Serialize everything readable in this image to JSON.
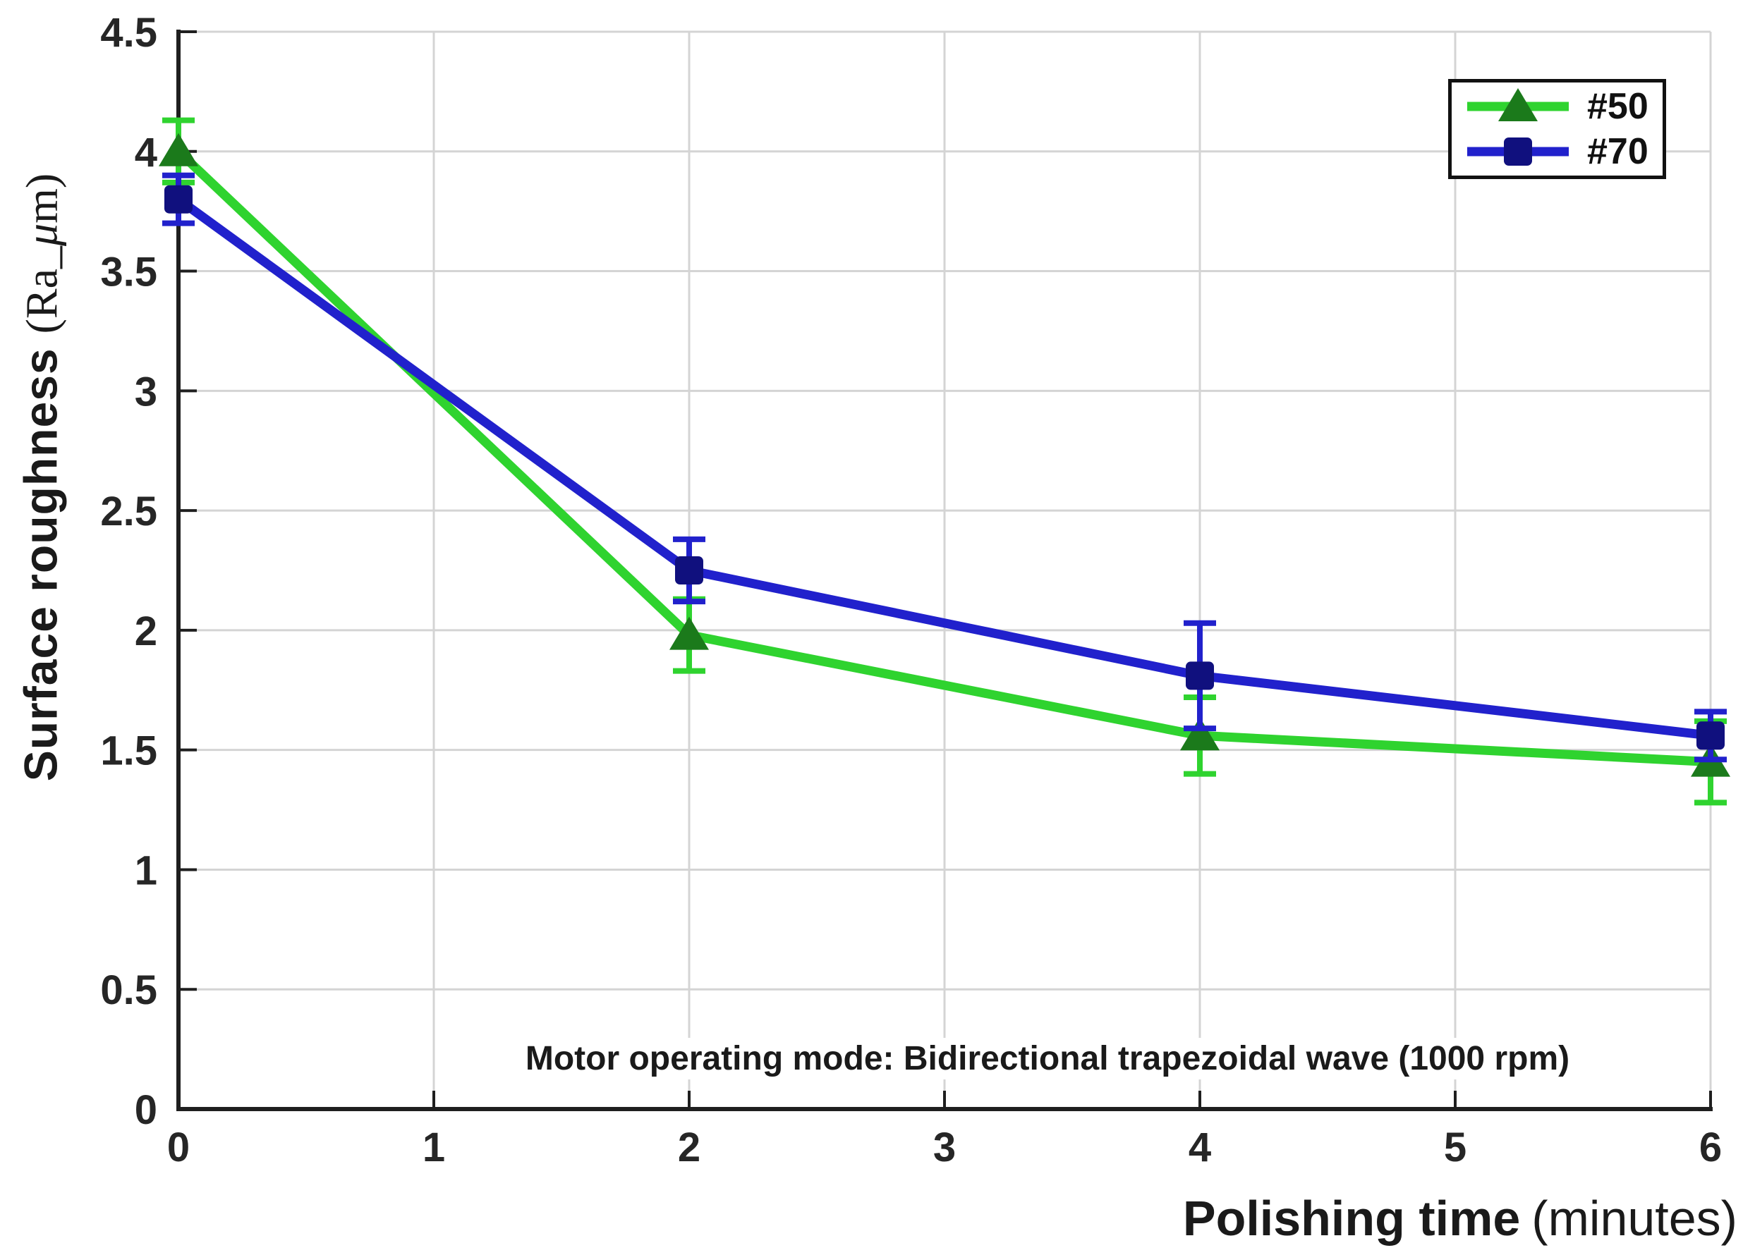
{
  "figure": {
    "background_color": "#ffffff",
    "axis_color": "#1f1f1f",
    "grid_color": "#d4d4d4",
    "tick_label_color": "#262626",
    "text_color": "#1a1a1a"
  },
  "chart_data": {
    "type": "line",
    "title": "",
    "xlabel": {
      "bold": "Polishing time",
      "paren": "(minutes)"
    },
    "ylabel": {
      "bold": "Surface roughness",
      "paren_pre": "(Ra_",
      "paren_mu": "μ",
      "paren_post": "m)"
    },
    "annotation": "Motor operating mode: Bidirectional trapezoidal wave (1000 rpm)",
    "xlim": [
      0,
      6
    ],
    "ylim": [
      0,
      4.5
    ],
    "x_ticks": [
      0,
      1,
      2,
      3,
      4,
      5,
      6
    ],
    "y_ticks": [
      0,
      0.5,
      1,
      1.5,
      2,
      2.5,
      3,
      3.5,
      4,
      4.5
    ],
    "grid": true,
    "legend_position": "top-right",
    "series": [
      {
        "name": "#50",
        "marker": "triangle",
        "line_color": "#2fd32f",
        "marker_color": "#1b7a1b",
        "x": [
          0,
          2,
          4,
          6
        ],
        "y": [
          4.0,
          1.98,
          1.56,
          1.45
        ],
        "yerr": [
          0.13,
          0.15,
          0.16,
          0.17
        ]
      },
      {
        "name": "#70",
        "marker": "square",
        "line_color": "#2121cc",
        "marker_color": "#10107e",
        "x": [
          0,
          2,
          4,
          6
        ],
        "y": [
          3.8,
          2.25,
          1.81,
          1.56
        ],
        "yerr": [
          0.1,
          0.13,
          0.22,
          0.1
        ]
      }
    ]
  }
}
